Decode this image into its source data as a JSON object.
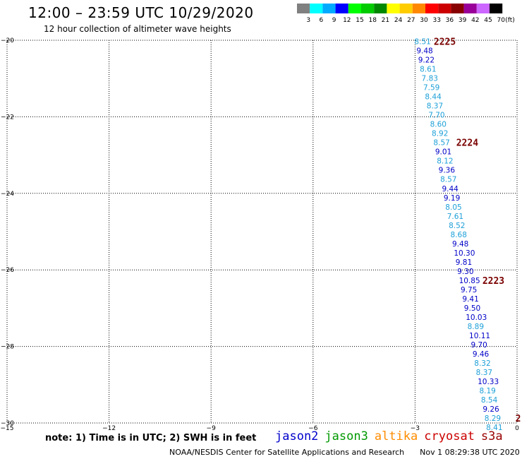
{
  "header": {
    "title": "12:00 – 23:59 UTC 10/29/2020",
    "subtitle": "12 hour collection of altimeter wave heights"
  },
  "colorbar": {
    "unit": "(ft)",
    "ticks": [
      "3",
      "6",
      "9",
      "12",
      "15",
      "18",
      "21",
      "24",
      "27",
      "30",
      "33",
      "36",
      "39",
      "42",
      "45",
      "70"
    ],
    "colors": [
      "#808080",
      "#00ffff",
      "#00aaff",
      "#0000ff",
      "#00ff00",
      "#00cc00",
      "#008800",
      "#ffff00",
      "#ffcc00",
      "#ff8800",
      "#ff0000",
      "#cc0000",
      "#880000",
      "#990099",
      "#cc66ff",
      "#000000"
    ]
  },
  "chart_data": {
    "type": "scatter",
    "title": "12:00 – 23:59 UTC 10/29/2020",
    "subtitle": "12 hour collection of altimeter wave heights",
    "xlim": [
      -15,
      0
    ],
    "ylim": [
      -30,
      -20
    ],
    "x_ticks": [
      -15,
      -12,
      -9,
      -6,
      -3,
      0
    ],
    "x_tick_labels": [
      "−15",
      "−12",
      "−9",
      "−6",
      "−3",
      "0"
    ],
    "y_ticks": [
      -20,
      -22,
      -24,
      -26,
      -28,
      -30
    ],
    "y_tick_labels": [
      "−20",
      "−22",
      "−24",
      "−26",
      "−28",
      "−30"
    ],
    "grid": true,
    "grid_x": [
      -12,
      -9,
      -6,
      -3
    ],
    "grid_y": [
      -22,
      -24,
      -26,
      -28
    ],
    "points": [
      {
        "x": -3.02,
        "y": -20.03,
        "label": "8.51",
        "color": "#1ea0d8"
      },
      {
        "x": -2.96,
        "y": -20.27,
        "label": "9.48",
        "color": "#0000c8"
      },
      {
        "x": -2.91,
        "y": -20.51,
        "label": "9.22",
        "color": "#0000c8"
      },
      {
        "x": -2.86,
        "y": -20.75,
        "label": "8.61",
        "color": "#1ea0d8"
      },
      {
        "x": -2.81,
        "y": -20.99,
        "label": "7.83",
        "color": "#1ea0d8"
      },
      {
        "x": -2.76,
        "y": -21.23,
        "label": "7.59",
        "color": "#1ea0d8"
      },
      {
        "x": -2.71,
        "y": -21.47,
        "label": "8.44",
        "color": "#1ea0d8"
      },
      {
        "x": -2.66,
        "y": -21.71,
        "label": "8.37",
        "color": "#1ea0d8"
      },
      {
        "x": -2.61,
        "y": -21.95,
        "label": "7.70",
        "color": "#1ea0d8"
      },
      {
        "x": -2.56,
        "y": -22.19,
        "label": "8.60",
        "color": "#1ea0d8"
      },
      {
        "x": -2.51,
        "y": -22.43,
        "label": "8.92",
        "color": "#1ea0d8"
      },
      {
        "x": -2.46,
        "y": -22.67,
        "label": "8.57",
        "color": "#1ea0d8"
      },
      {
        "x": -2.41,
        "y": -22.91,
        "label": "9.01",
        "color": "#0000c8"
      },
      {
        "x": -2.36,
        "y": -23.15,
        "label": "8.12",
        "color": "#1ea0d8"
      },
      {
        "x": -2.31,
        "y": -23.39,
        "label": "9.36",
        "color": "#0000c8"
      },
      {
        "x": -2.26,
        "y": -23.63,
        "label": "8.57",
        "color": "#1ea0d8"
      },
      {
        "x": -2.21,
        "y": -23.87,
        "label": "9.44",
        "color": "#0000c8"
      },
      {
        "x": -2.16,
        "y": -24.11,
        "label": "9.19",
        "color": "#0000c8"
      },
      {
        "x": -2.11,
        "y": -24.35,
        "label": "8.05",
        "color": "#1ea0d8"
      },
      {
        "x": -2.06,
        "y": -24.59,
        "label": "7.61",
        "color": "#1ea0d8"
      },
      {
        "x": -2.01,
        "y": -24.83,
        "label": "8.52",
        "color": "#1ea0d8"
      },
      {
        "x": -1.96,
        "y": -25.07,
        "label": "8.68",
        "color": "#1ea0d8"
      },
      {
        "x": -1.91,
        "y": -25.31,
        "label": "9.48",
        "color": "#0000c8"
      },
      {
        "x": -1.86,
        "y": -25.55,
        "label": "10.30",
        "color": "#0000c8"
      },
      {
        "x": -1.81,
        "y": -25.79,
        "label": "9.81",
        "color": "#0000c8"
      },
      {
        "x": -1.76,
        "y": -26.03,
        "label": "9.30",
        "color": "#0000c8"
      },
      {
        "x": -1.71,
        "y": -26.27,
        "label": "10.85",
        "color": "#0000c8"
      },
      {
        "x": -1.66,
        "y": -26.51,
        "label": "9.75",
        "color": "#0000c8"
      },
      {
        "x": -1.61,
        "y": -26.75,
        "label": "9.41",
        "color": "#0000c8"
      },
      {
        "x": -1.56,
        "y": -26.99,
        "label": "9.50",
        "color": "#0000c8"
      },
      {
        "x": -1.51,
        "y": -27.23,
        "label": "10.03",
        "color": "#0000c8"
      },
      {
        "x": -1.46,
        "y": -27.47,
        "label": "8.89",
        "color": "#1ea0d8"
      },
      {
        "x": -1.41,
        "y": -27.71,
        "label": "10.11",
        "color": "#0000c8"
      },
      {
        "x": -1.36,
        "y": -27.95,
        "label": "9.70",
        "color": "#0000c8"
      },
      {
        "x": -1.31,
        "y": -28.19,
        "label": "9.46",
        "color": "#0000c8"
      },
      {
        "x": -1.26,
        "y": -28.43,
        "label": "8.32",
        "color": "#1ea0d8"
      },
      {
        "x": -1.21,
        "y": -28.67,
        "label": "8.37",
        "color": "#1ea0d8"
      },
      {
        "x": -1.16,
        "y": -28.91,
        "label": "10.33",
        "color": "#0000c8"
      },
      {
        "x": -1.11,
        "y": -29.15,
        "label": "8.19",
        "color": "#1ea0d8"
      },
      {
        "x": -1.06,
        "y": -29.39,
        "label": "8.54",
        "color": "#1ea0d8"
      },
      {
        "x": -1.01,
        "y": -29.63,
        "label": "9.26",
        "color": "#0000c8"
      },
      {
        "x": -0.96,
        "y": -29.87,
        "label": "8.29",
        "color": "#1ea0d8"
      },
      {
        "x": -0.91,
        "y": -30.11,
        "label": "8.41",
        "color": "#1ea0d8"
      }
    ],
    "time_labels": [
      {
        "x": -2.45,
        "y": -20.03,
        "label": "2225",
        "color": "#7a0000"
      },
      {
        "x": -1.79,
        "y": -22.67,
        "label": "2224",
        "color": "#7a0000"
      },
      {
        "x": -1.02,
        "y": -26.27,
        "label": "2223",
        "color": "#7a0000"
      },
      {
        "x": -0.05,
        "y": -29.87,
        "label": "2",
        "color": "#7a0000"
      }
    ]
  },
  "note": "note:  1) Time is in UTC;  2) SWH is in feet",
  "satellites": [
    {
      "name": "jason2",
      "color": "#0000cc"
    },
    {
      "name": "jason3",
      "color": "#009900"
    },
    {
      "name": "altika",
      "color": "#ff8c00"
    },
    {
      "name": "cryosat",
      "color": "#cc0000"
    },
    {
      "name": "s3a",
      "color": "#990000"
    }
  ],
  "footer": {
    "agency": "NOAA/NESDIS Center for Satellite Applications and Research",
    "timestamp": "Nov  1 08:29:38 UTC 2020"
  }
}
